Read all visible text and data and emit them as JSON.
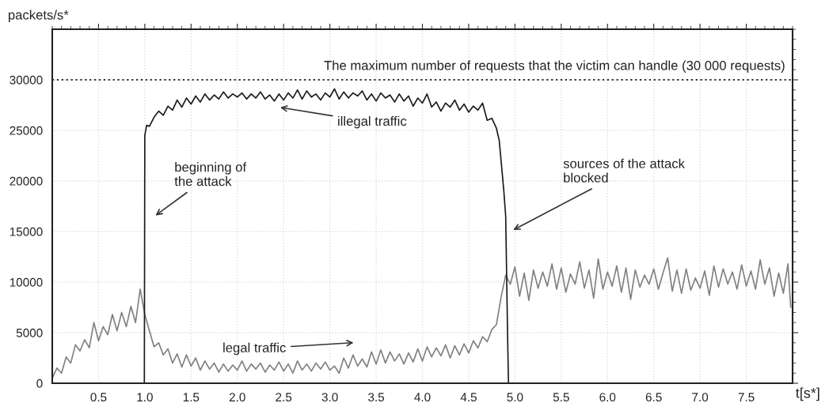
{
  "chart_data": {
    "type": "line",
    "xlabel": "t[s*]",
    "ylabel": "packets/s*",
    "xlim": [
      0,
      8
    ],
    "ylim": [
      0,
      35000
    ],
    "xticks": [
      {
        "value": 0.5,
        "label": "0.5"
      },
      {
        "value": 1,
        "label": "1.0"
      },
      {
        "value": 1.5,
        "label": "1.5"
      },
      {
        "value": 2,
        "label": "2.0"
      },
      {
        "value": 2.5,
        "label": "2.5"
      },
      {
        "value": 3,
        "label": "3.0"
      },
      {
        "value": 3.5,
        "label": "3.5"
      },
      {
        "value": 4,
        "label": "4.0"
      },
      {
        "value": 4.5,
        "label": "4.5"
      },
      {
        "value": 5,
        "label": "5.0"
      },
      {
        "value": 5.5,
        "label": "5.5"
      },
      {
        "value": 6,
        "label": "6.0"
      },
      {
        "value": 6.5,
        "label": "6.5"
      },
      {
        "value": 7,
        "label": "7.0"
      },
      {
        "value": 7.5,
        "label": "7.5"
      }
    ],
    "yticks": [
      0,
      5000,
      10000,
      15000,
      20000,
      25000,
      30000
    ],
    "grid": true,
    "marker": "none",
    "line_style": "solid",
    "series": [
      {
        "color": "#808080",
        "x": [
          0,
          0.05,
          0.1,
          0.15,
          0.2,
          0.25,
          0.3,
          0.35,
          0.4,
          0.45,
          0.5,
          0.55,
          0.6,
          0.65,
          0.7,
          0.75,
          0.8,
          0.85,
          0.9,
          0.95,
          1.0,
          1.05,
          1.1,
          1.15,
          1.2,
          1.25,
          1.3,
          1.35,
          1.4,
          1.45,
          1.5,
          1.55,
          1.6,
          1.65,
          1.7,
          1.75,
          1.8,
          1.85,
          1.9,
          1.95,
          2.0,
          2.05,
          2.1,
          2.15,
          2.2,
          2.25,
          2.3,
          2.35,
          2.4,
          2.45,
          2.5,
          2.55,
          2.6,
          2.65,
          2.7,
          2.75,
          2.8,
          2.85,
          2.9,
          2.95,
          3.0,
          3.05,
          3.1,
          3.15,
          3.2,
          3.25,
          3.3,
          3.35,
          3.4,
          3.45,
          3.5,
          3.55,
          3.6,
          3.65,
          3.7,
          3.75,
          3.8,
          3.85,
          3.9,
          3.95,
          4.0,
          4.05,
          4.1,
          4.15,
          4.2,
          4.25,
          4.3,
          4.35,
          4.4,
          4.45,
          4.5,
          4.55,
          4.6,
          4.65,
          4.7,
          4.75,
          4.8,
          4.85,
          4.9,
          4.95,
          5.0,
          5.05,
          5.1,
          5.15,
          5.2,
          5.25,
          5.3,
          5.35,
          5.4,
          5.45,
          5.5,
          5.55,
          5.6,
          5.65,
          5.7,
          5.75,
          5.8,
          5.85,
          5.9,
          5.95,
          6.0,
          6.05,
          6.1,
          6.15,
          6.2,
          6.25,
          6.3,
          6.35,
          6.4,
          6.45,
          6.5,
          6.55,
          6.6,
          6.65,
          6.7,
          6.75,
          6.8,
          6.85,
          6.9,
          6.95,
          7.0,
          7.05,
          7.1,
          7.15,
          7.2,
          7.25,
          7.3,
          7.35,
          7.4,
          7.45,
          7.5,
          7.55,
          7.6,
          7.65,
          7.7,
          7.75,
          7.8,
          7.85,
          7.9,
          7.95,
          7.98
        ],
        "values": [
          500,
          1500,
          1000,
          2600,
          2000,
          3800,
          3200,
          4300,
          3500,
          6000,
          4200,
          5600,
          4800,
          6800,
          5200,
          7000,
          5600,
          7600,
          6000,
          9300,
          6800,
          5200,
          3600,
          4000,
          2800,
          3400,
          2000,
          2900,
          1600,
          2800,
          1700,
          2500,
          1300,
          2200,
          1400,
          2000,
          1100,
          1900,
          1200,
          1800,
          1300,
          2200,
          1200,
          1900,
          1400,
          2000,
          1100,
          1800,
          1300,
          2100,
          1200,
          1900,
          1000,
          2200,
          1300,
          1900,
          1200,
          2000,
          1400,
          2100,
          1300,
          1700,
          1000,
          2500,
          1500,
          2800,
          1700,
          2400,
          1600,
          3100,
          1900,
          3300,
          2000,
          3100,
          2200,
          2900,
          1900,
          3000,
          2100,
          3400,
          2200,
          3600,
          2600,
          3500,
          2700,
          3800,
          2500,
          3700,
          2800,
          3900,
          3000,
          4200,
          3500,
          4600,
          4100,
          5300,
          5800,
          8500,
          10700,
          9800,
          11500,
          8600,
          10900,
          8200,
          11200,
          9400,
          11000,
          9600,
          11800,
          9300,
          11400,
          9000,
          10800,
          9800,
          12000,
          9400,
          11200,
          8400,
          12300,
          9300,
          11000,
          9600,
          11600,
          9000,
          11400,
          8300,
          11200,
          9500,
          10700,
          9800,
          11300,
          9300,
          10900,
          12400,
          9100,
          11200,
          8900,
          11300,
          9200,
          10400,
          9400,
          11100,
          8700,
          11600,
          9500,
          11300,
          9800,
          11000,
          9300,
          11700,
          9600,
          11100,
          9300,
          12200,
          9800,
          11400,
          8600,
          10900,
          8900,
          11800,
          7500
        ]
      },
      {
        "color": "#1a1a1a",
        "x": [
          0,
          0.995,
          1.0,
          1.02,
          1.05,
          1.1,
          1.15,
          1.2,
          1.25,
          1.3,
          1.35,
          1.4,
          1.45,
          1.5,
          1.55,
          1.6,
          1.65,
          1.7,
          1.75,
          1.8,
          1.85,
          1.9,
          1.95,
          2.0,
          2.05,
          2.1,
          2.15,
          2.2,
          2.25,
          2.3,
          2.35,
          2.4,
          2.45,
          2.5,
          2.55,
          2.6,
          2.65,
          2.7,
          2.75,
          2.8,
          2.85,
          2.9,
          2.95,
          3.0,
          3.05,
          3.1,
          3.15,
          3.2,
          3.25,
          3.3,
          3.35,
          3.4,
          3.45,
          3.5,
          3.55,
          3.6,
          3.65,
          3.7,
          3.75,
          3.8,
          3.85,
          3.9,
          3.95,
          4.0,
          4.05,
          4.1,
          4.15,
          4.2,
          4.25,
          4.3,
          4.35,
          4.4,
          4.45,
          4.5,
          4.55,
          4.6,
          4.65,
          4.7,
          4.75,
          4.8,
          4.83,
          4.86,
          4.88,
          4.9,
          4.92,
          4.93,
          8.0
        ],
        "values": [
          0,
          0,
          24500,
          25500,
          25400,
          26300,
          26900,
          26500,
          27400,
          27000,
          28000,
          27300,
          28200,
          27600,
          28400,
          27800,
          28600,
          28000,
          28500,
          28100,
          28800,
          28200,
          28600,
          28300,
          28700,
          28100,
          28600,
          28200,
          28800,
          28100,
          28500,
          27900,
          28600,
          28000,
          28700,
          28200,
          29000,
          28100,
          28900,
          28300,
          28600,
          28000,
          28700,
          28300,
          29100,
          28100,
          28800,
          28200,
          28700,
          28400,
          28900,
          28000,
          28600,
          27900,
          28700,
          28200,
          28500,
          27800,
          28600,
          27900,
          28400,
          27400,
          28200,
          27700,
          28600,
          27300,
          27800,
          26900,
          27700,
          27300,
          28000,
          27000,
          27600,
          26800,
          27400,
          27000,
          27700,
          26000,
          26200,
          25200,
          24000,
          21000,
          19000,
          16500,
          5000,
          0,
          0
        ]
      }
    ],
    "ref_lines": [
      {
        "axis": "y",
        "value": 30000,
        "label": "The maximum number of requests that the victim can handle (30 000 requests)",
        "color": "#333333",
        "line_style": "dotted"
      }
    ],
    "annotations": [
      "beginning of\nthe attack",
      "illegal traffic",
      "legal traffic",
      "sources of the attack\nblocked"
    ]
  }
}
